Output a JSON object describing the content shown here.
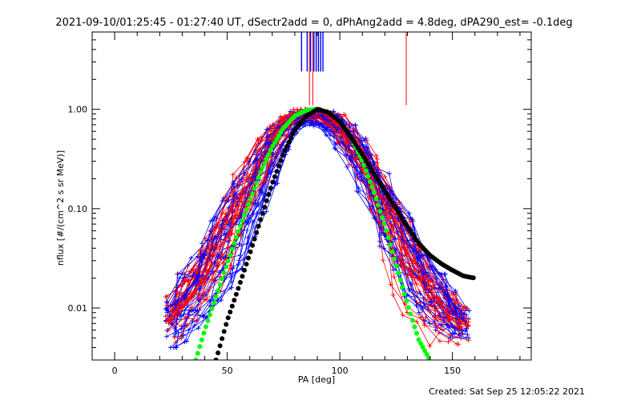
{
  "chart_data": {
    "type": "scatter",
    "title": "2021-09-10/01:25:45 - 01:27:40 UT, dSectr2add = 0, dPhAng2add = 4.8deg, dPA290_est= -0.1deg",
    "footer": "Created: Sat Sep 25 12:05:22 2021",
    "xlabel": "PA [deg]",
    "ylabel": "nflux [#/(cm^2 s sr MeV)]",
    "xlim": [
      -10,
      185
    ],
    "ylim": [
      0.003,
      6.0
    ],
    "yscale": "log",
    "xticks": [
      0,
      50,
      100,
      150
    ],
    "xtick_labels": [
      "0",
      "50",
      "100",
      "150"
    ],
    "yticks": [
      0.01,
      0.1,
      1.0
    ],
    "ytick_labels": [
      "0.01",
      "0.10",
      "1.00"
    ],
    "colors": {
      "red_series": "#ff0000",
      "blue_series": "#0000ff",
      "green_fit": "#00ff00",
      "black_fit": "#000000",
      "axes": "#000000"
    },
    "vertical_markers": {
      "blue_x": [
        83,
        85.5,
        87,
        88.5,
        89.5,
        90.5,
        91.5,
        92.5
      ],
      "red_x": [
        86.5,
        88,
        129.5
      ],
      "blue_range": [
        2.4,
        6.0
      ],
      "red_range": [
        1.1,
        6.0
      ]
    },
    "series": [
      {
        "color": "red",
        "x": [
          25,
          30,
          35,
          40,
          45,
          50,
          55,
          60,
          65,
          70,
          75,
          80,
          85,
          90,
          95,
          100,
          105,
          110,
          115,
          120,
          125,
          130,
          135,
          140,
          145,
          150,
          155
        ],
        "upper": [
          0.013,
          0.022,
          0.033,
          0.05,
          0.08,
          0.13,
          0.22,
          0.32,
          0.5,
          0.7,
          0.88,
          1.0,
          1.0,
          1.0,
          0.95,
          0.88,
          0.72,
          0.52,
          0.34,
          0.21,
          0.13,
          0.075,
          0.05,
          0.03,
          0.02,
          0.015,
          0.01
        ],
        "lower": [
          0.004,
          0.0045,
          0.006,
          0.008,
          0.012,
          0.018,
          0.03,
          0.06,
          0.12,
          0.25,
          0.45,
          0.65,
          0.78,
          0.72,
          0.6,
          0.42,
          0.25,
          0.13,
          0.06,
          0.025,
          0.012,
          0.007,
          0.005,
          0.004,
          0.004,
          0.004,
          0.004
        ]
      },
      {
        "color": "blue",
        "x": [
          25,
          30,
          35,
          40,
          45,
          50,
          55,
          60,
          65,
          70,
          75,
          80,
          85,
          90,
          95,
          100,
          105,
          110,
          115,
          120,
          125,
          130,
          135,
          140,
          145,
          150,
          155
        ],
        "upper": [
          0.013,
          0.022,
          0.033,
          0.05,
          0.08,
          0.12,
          0.2,
          0.3,
          0.45,
          0.65,
          0.85,
          0.97,
          1.0,
          1.0,
          0.95,
          0.88,
          0.75,
          0.55,
          0.38,
          0.25,
          0.15,
          0.09,
          0.055,
          0.035,
          0.022,
          0.015,
          0.01
        ],
        "lower": [
          0.004,
          0.0045,
          0.006,
          0.008,
          0.012,
          0.016,
          0.025,
          0.045,
          0.09,
          0.18,
          0.35,
          0.55,
          0.7,
          0.68,
          0.55,
          0.4,
          0.26,
          0.15,
          0.08,
          0.04,
          0.022,
          0.013,
          0.009,
          0.007,
          0.006,
          0.005,
          0.005
        ]
      },
      {
        "name": "",
        "color": "green",
        "x": [
          36,
          40,
          45,
          50,
          55,
          60,
          65,
          70,
          75,
          80,
          85,
          90,
          95,
          100,
          105,
          110,
          115,
          120,
          125,
          130,
          135,
          140
        ],
        "y": [
          0.003,
          0.006,
          0.013,
          0.028,
          0.06,
          0.12,
          0.24,
          0.42,
          0.65,
          0.86,
          0.98,
          1.0,
          0.93,
          0.75,
          0.52,
          0.3,
          0.15,
          0.067,
          0.027,
          0.011,
          0.0048,
          0.003
        ]
      },
      {
        "name": "",
        "color": "black",
        "x": [
          45,
          50,
          55,
          60,
          65,
          70,
          75,
          80,
          85,
          90,
          95,
          100,
          105,
          110,
          115,
          120,
          125,
          130,
          135,
          140,
          145,
          150,
          155,
          160
        ],
        "y": [
          0.003,
          0.0075,
          0.016,
          0.035,
          0.08,
          0.18,
          0.36,
          0.62,
          0.85,
          1.0,
          0.93,
          0.75,
          0.52,
          0.35,
          0.23,
          0.15,
          0.1,
          0.066,
          0.045,
          0.034,
          0.028,
          0.024,
          0.021,
          0.02
        ]
      }
    ]
  }
}
